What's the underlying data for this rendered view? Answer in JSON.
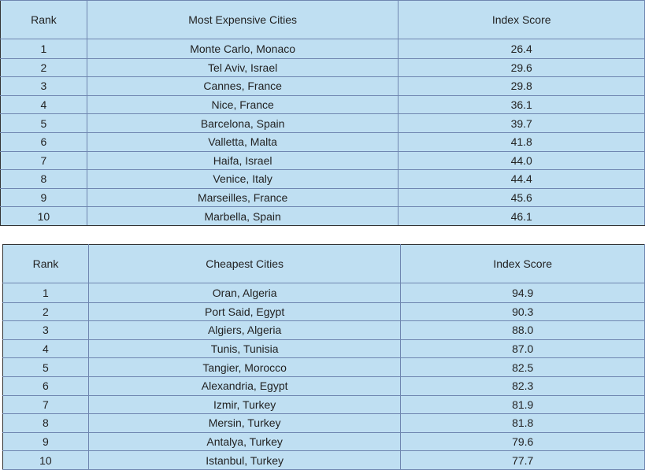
{
  "expensive": {
    "headers": [
      "Rank",
      "Most Expensive Cities",
      "Index Score"
    ],
    "rows": [
      [
        "1",
        "Monte Carlo, Monaco",
        "26.4"
      ],
      [
        "2",
        "Tel Aviv, Israel",
        "29.6"
      ],
      [
        "3",
        "Cannes, France",
        "29.8"
      ],
      [
        "4",
        "Nice, France",
        "36.1"
      ],
      [
        "5",
        "Barcelona, Spain",
        "39.7"
      ],
      [
        "6",
        "Valletta, Malta",
        "41.8"
      ],
      [
        "7",
        "Haifa, Israel",
        "44.0"
      ],
      [
        "8",
        "Venice, Italy",
        "44.4"
      ],
      [
        "9",
        "Marseilles, France",
        "45.6"
      ],
      [
        "10",
        "Marbella, Spain",
        "46.1"
      ]
    ]
  },
  "cheap": {
    "headers": [
      "Rank",
      "Cheapest Cities",
      "Index Score"
    ],
    "rows": [
      [
        "1",
        "Oran, Algeria",
        "94.9"
      ],
      [
        "2",
        "Port Said, Egypt",
        "90.3"
      ],
      [
        "3",
        "Algiers, Algeria",
        "88.0"
      ],
      [
        "4",
        "Tunis, Tunisia",
        "87.0"
      ],
      [
        "5",
        "Tangier, Morocco",
        "82.5"
      ],
      [
        "6",
        "Alexandria, Egypt",
        "82.3"
      ],
      [
        "7",
        "Izmir, Turkey",
        "81.9"
      ],
      [
        "8",
        "Mersin, Turkey",
        "81.8"
      ],
      [
        "9",
        "Antalya, Turkey",
        "79.6"
      ],
      [
        "10",
        "Istanbul, Turkey",
        "77.7"
      ]
    ]
  }
}
